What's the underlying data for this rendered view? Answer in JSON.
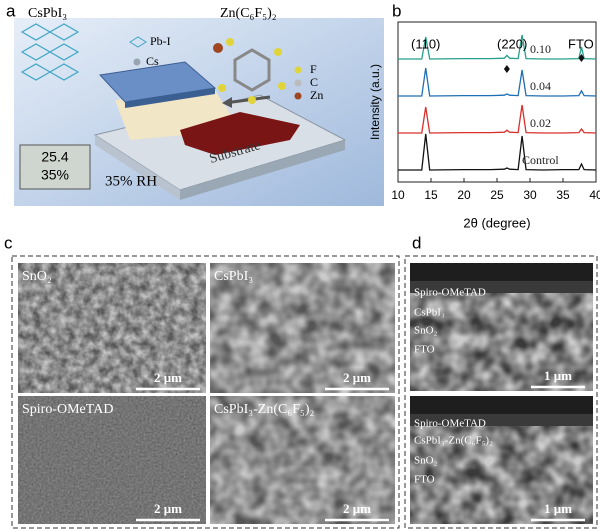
{
  "panel_labels": [
    "a",
    "b",
    "c",
    "d"
  ],
  "panel_a": {
    "material": "CsPbI₃",
    "additive": "Zn(C₆F₅)₂",
    "legend_left": [
      "Pb-I",
      "Cs"
    ],
    "legend_right": [
      "F",
      "C",
      "Zn"
    ],
    "substrate": "Substrate",
    "humidity": "35% RH",
    "meter": [
      "25.4",
      "35%"
    ]
  },
  "chart_data": {
    "type": "line",
    "xlabel": "2θ (degree)",
    "ylabel": "Intensity (a.u.)",
    "annotations": [
      "(110)",
      "(220)",
      "FTO"
    ],
    "x": [
      10,
      13.6,
      14.2,
      14.8,
      20,
      24,
      26.1,
      26.5,
      26.9,
      28.2,
      28.8,
      29.4,
      32,
      35,
      37.4,
      37.8,
      38.2,
      40
    ],
    "xlim": [
      10,
      40
    ],
    "xticks": [
      10,
      15,
      20,
      25,
      30,
      35,
      40
    ],
    "series": [
      {
        "name": "Control",
        "color": "#111111",
        "values": [
          5,
          5,
          95,
          5,
          6,
          6,
          7,
          10,
          7,
          6,
          90,
          6,
          5,
          6,
          6,
          20,
          6,
          5
        ]
      },
      {
        "name": "0.02",
        "color": "#d9302c",
        "values": [
          5,
          5,
          70,
          5,
          6,
          6,
          7,
          12,
          7,
          6,
          75,
          6,
          5,
          5,
          6,
          15,
          6,
          5
        ]
      },
      {
        "name": "0.04",
        "color": "#1f6fb4",
        "values": [
          5,
          5,
          75,
          5,
          6,
          6,
          7,
          10,
          7,
          6,
          70,
          6,
          5,
          5,
          6,
          18,
          6,
          5
        ]
      },
      {
        "name": "0.10",
        "color": "#25a08a",
        "values": [
          5,
          5,
          60,
          5,
          6,
          6,
          7,
          14,
          7,
          6,
          65,
          6,
          5,
          5,
          6,
          35,
          6,
          5
        ]
      }
    ]
  },
  "panel_c": {
    "images": [
      {
        "label": "SnO₂",
        "scale": "2 μm"
      },
      {
        "label": "CsPbI₃",
        "scale": "2 μm"
      },
      {
        "label": "Spiro-OMeTAD",
        "scale": "2 μm"
      },
      {
        "label": "CsPbI₃-Zn(C₆F₅)₂",
        "scale": "2 μm"
      }
    ]
  },
  "panel_d": {
    "images": [
      {
        "layers": [
          "Spiro-OMeTAD",
          "CsPbI₃",
          "SnO₂",
          "FTO"
        ],
        "scale": "1 μm"
      },
      {
        "layers": [
          "Spiro-OMeTAD",
          "CsPbI₃-Zn(C₆F₅)₂",
          "SnO₂",
          "FTO"
        ],
        "scale": "1 μm"
      }
    ]
  }
}
